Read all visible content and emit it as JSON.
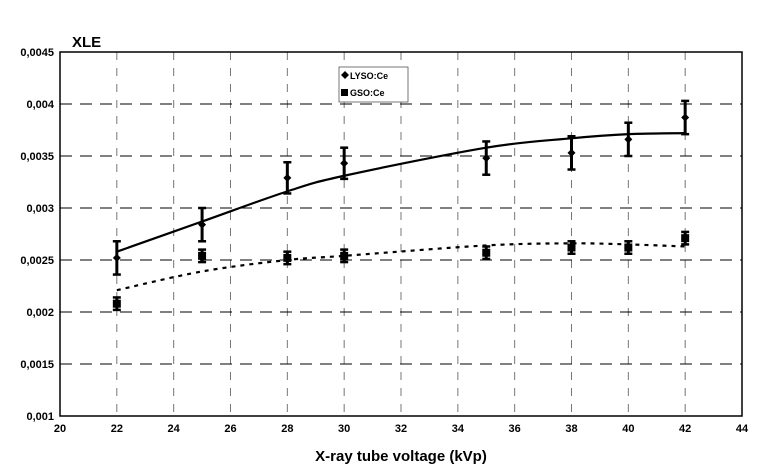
{
  "chart_data": {
    "type": "scatter",
    "title": "",
    "ylabel": "XLE",
    "xlabel": "X-ray tube voltage (kVp)",
    "xlim": [
      20,
      44
    ],
    "ylim": [
      0.001,
      0.0045
    ],
    "xticks": [
      20,
      22,
      24,
      26,
      28,
      30,
      32,
      34,
      36,
      38,
      40,
      42,
      44
    ],
    "yticks": [
      "0,001",
      "0,0015",
      "0,002",
      "0,0025",
      "0,003",
      "0,0035",
      "0,004",
      "0,0045"
    ],
    "grid": true,
    "legend_position": "top-center",
    "x": [
      22,
      25,
      28,
      30,
      35,
      38,
      40,
      42
    ],
    "series": [
      {
        "name": "LYSO:Ce",
        "marker": "diamond",
        "values": [
          0.00252,
          0.00284,
          0.00329,
          0.00343,
          0.00348,
          0.00353,
          0.00366,
          0.00387
        ],
        "errors": [
          0.00016,
          0.00016,
          0.00015,
          0.00015,
          0.00016,
          0.00016,
          0.00016,
          0.00016
        ],
        "fit_style": "solid",
        "fit": [
          0.00258,
          0.00287,
          0.00316,
          0.00331,
          0.00358,
          0.00367,
          0.00371,
          0.00372
        ]
      },
      {
        "name": "GSO:Ce",
        "marker": "square",
        "values": [
          0.00208,
          0.00254,
          0.00252,
          0.00254,
          0.00257,
          0.00262,
          0.00262,
          0.00271
        ],
        "errors": [
          6e-05,
          6e-05,
          6e-05,
          6e-05,
          6e-05,
          6e-05,
          6e-05,
          6e-05
        ],
        "fit_style": "dotted",
        "fit": [
          0.00221,
          0.00239,
          0.0025,
          0.00254,
          0.00264,
          0.00266,
          0.00265,
          0.00263
        ]
      }
    ]
  }
}
